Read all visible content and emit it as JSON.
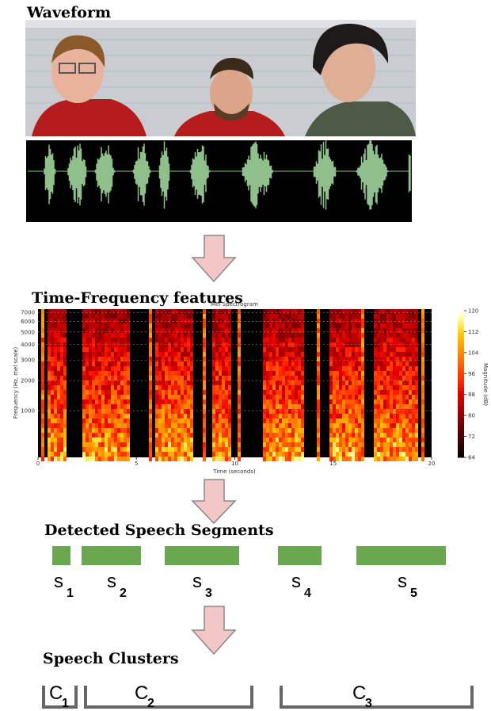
{
  "headings": {
    "waveform": "Waveform",
    "features": "Time-Frequency features",
    "segments": "Detected Speech Segments",
    "clusters": "Speech Clusters"
  },
  "spectrogram": {
    "title": "Mel Spectrogram",
    "x_label": "Time (seconds)",
    "y_label": "Frequency (Hz, mel scale)",
    "colorbar_label": "Magnitude (dB)",
    "xlim": [
      0,
      20
    ],
    "xticks": [
      0,
      5,
      10,
      15,
      20
    ],
    "yscale": "mel",
    "ylim": [
      128,
      7400
    ],
    "yticks": [
      1000,
      2000,
      3000,
      4000,
      5000,
      6000,
      7000
    ],
    "clim": [
      64,
      120
    ],
    "cticks": [
      64,
      72,
      80,
      88,
      96,
      104,
      112,
      120
    ]
  },
  "segments": [
    {
      "base": "s",
      "sub": "1"
    },
    {
      "base": "s",
      "sub": "2"
    },
    {
      "base": "s",
      "sub": "3"
    },
    {
      "base": "s",
      "sub": "4"
    },
    {
      "base": "s",
      "sub": "5"
    }
  ],
  "clusters": [
    {
      "base": "C",
      "sub": "1"
    },
    {
      "base": "C",
      "sub": "2"
    },
    {
      "base": "C",
      "sub": "3"
    }
  ]
}
